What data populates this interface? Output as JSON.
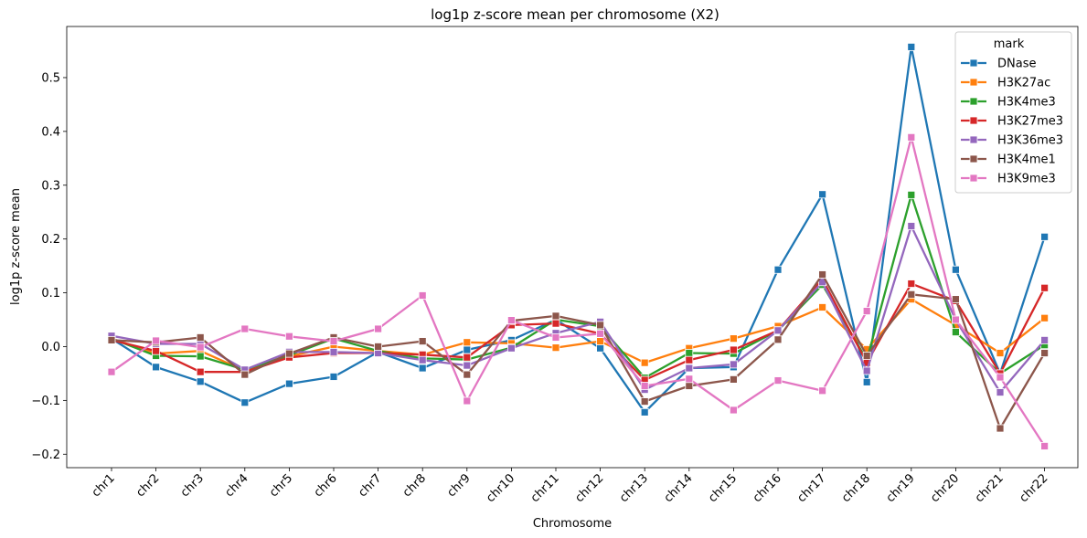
{
  "chart_data": {
    "type": "line",
    "title": "log1p z-score mean per chromosome (X2)",
    "xlabel": "Chromosome",
    "ylabel": "log1p z-score mean",
    "ylim": [
      -0.225,
      0.595
    ],
    "yticks": [
      -0.2,
      -0.1,
      0.0,
      0.1,
      0.2,
      0.3,
      0.4,
      0.5
    ],
    "ytick_labels": [
      "−0.2",
      "−0.1",
      "0.0",
      "0.1",
      "0.2",
      "0.3",
      "0.4",
      "0.5"
    ],
    "grid": false,
    "legend_position": "top-right",
    "legend_title": "mark",
    "categories": [
      "chr1",
      "chr2",
      "chr3",
      "chr4",
      "chr5",
      "chr6",
      "chr7",
      "chr8",
      "chr9",
      "chr10",
      "chr11",
      "chr12",
      "chr13",
      "chr14",
      "chr15",
      "chr16",
      "chr17",
      "chr18",
      "chr19",
      "chr20",
      "chr21",
      "chr22"
    ],
    "series": [
      {
        "name": "DNase",
        "color": "#1f77b4",
        "values": [
          0.015,
          -0.038,
          -0.065,
          -0.104,
          -0.069,
          -0.056,
          -0.01,
          -0.04,
          -0.006,
          0.012,
          0.05,
          -0.003,
          -0.122,
          -0.04,
          -0.038,
          0.143,
          0.283,
          -0.066,
          0.557,
          0.143,
          -0.05,
          0.204
        ]
      },
      {
        "name": "H3K27ac",
        "color": "#ff7f0e",
        "values": [
          0.015,
          -0.013,
          -0.008,
          -0.045,
          -0.018,
          0.0,
          -0.008,
          -0.015,
          0.008,
          0.006,
          -0.002,
          0.01,
          -0.03,
          -0.003,
          0.015,
          0.038,
          0.073,
          -0.005,
          0.088,
          0.04,
          -0.012,
          0.053
        ]
      },
      {
        "name": "H3K4me3",
        "color": "#2ca02c",
        "values": [
          0.015,
          -0.017,
          -0.018,
          -0.043,
          -0.016,
          0.015,
          -0.008,
          -0.022,
          -0.024,
          -0.002,
          0.05,
          0.038,
          -0.058,
          -0.012,
          -0.013,
          0.03,
          0.115,
          -0.025,
          0.282,
          0.027,
          -0.05,
          0.003
        ]
      },
      {
        "name": "H3K27me3",
        "color": "#d62728",
        "values": [
          0.012,
          -0.008,
          -0.047,
          -0.047,
          -0.02,
          -0.012,
          -0.012,
          -0.015,
          -0.02,
          0.04,
          0.043,
          0.024,
          -0.062,
          -0.025,
          -0.006,
          0.03,
          0.125,
          -0.03,
          0.117,
          0.085,
          -0.05,
          0.109
        ]
      },
      {
        "name": "H3K36me3",
        "color": "#9467bd",
        "values": [
          0.02,
          0.005,
          0.005,
          -0.043,
          -0.01,
          -0.01,
          -0.012,
          -0.025,
          -0.035,
          -0.003,
          0.025,
          0.046,
          -0.08,
          -0.04,
          -0.033,
          0.03,
          0.12,
          -0.045,
          0.224,
          0.05,
          -0.085,
          0.012
        ]
      },
      {
        "name": "H3K4me1",
        "color": "#8c564b",
        "values": [
          0.012,
          0.008,
          0.017,
          -0.052,
          -0.013,
          0.017,
          0.0,
          0.01,
          -0.052,
          0.048,
          0.057,
          0.04,
          -0.102,
          -0.073,
          -0.061,
          0.013,
          0.134,
          -0.017,
          0.097,
          0.088,
          -0.152,
          -0.012
        ]
      },
      {
        "name": "H3K9me3",
        "color": "#e377c2",
        "values": [
          -0.047,
          0.011,
          -0.001,
          0.033,
          0.019,
          0.01,
          0.033,
          0.095,
          -0.101,
          0.049,
          0.017,
          0.024,
          -0.073,
          -0.06,
          -0.118,
          -0.063,
          -0.082,
          0.066,
          0.389,
          0.05,
          -0.057,
          -0.185
        ]
      }
    ]
  }
}
